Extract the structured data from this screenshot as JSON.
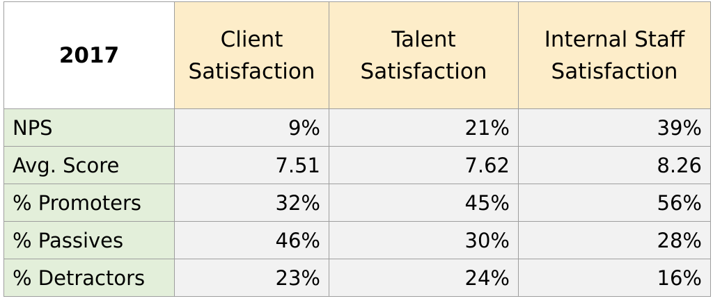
{
  "colors": {
    "header_fill": "#fdedc9",
    "row_label_fill": "#e3efda",
    "value_fill": "#f2f2f2",
    "border": "#9e9e9e"
  },
  "chart_data": {
    "type": "table",
    "corner_label": "2017",
    "columns": [
      [
        "Client",
        "Satisfaction"
      ],
      [
        "Talent",
        "Satisfaction"
      ],
      [
        "Internal Staff",
        "Satisfaction"
      ]
    ],
    "rows": [
      {
        "label": "NPS",
        "values": [
          "9%",
          "21%",
          "39%"
        ]
      },
      {
        "label": "Avg. Score",
        "values": [
          "7.51",
          "7.62",
          "8.26"
        ]
      },
      {
        "label": "% Promoters",
        "values": [
          "32%",
          "45%",
          "56%"
        ]
      },
      {
        "label": "% Passives",
        "values": [
          "46%",
          "30%",
          "28%"
        ]
      },
      {
        "label": "% Detractors",
        "values": [
          "23%",
          "24%",
          "16%"
        ]
      }
    ]
  }
}
